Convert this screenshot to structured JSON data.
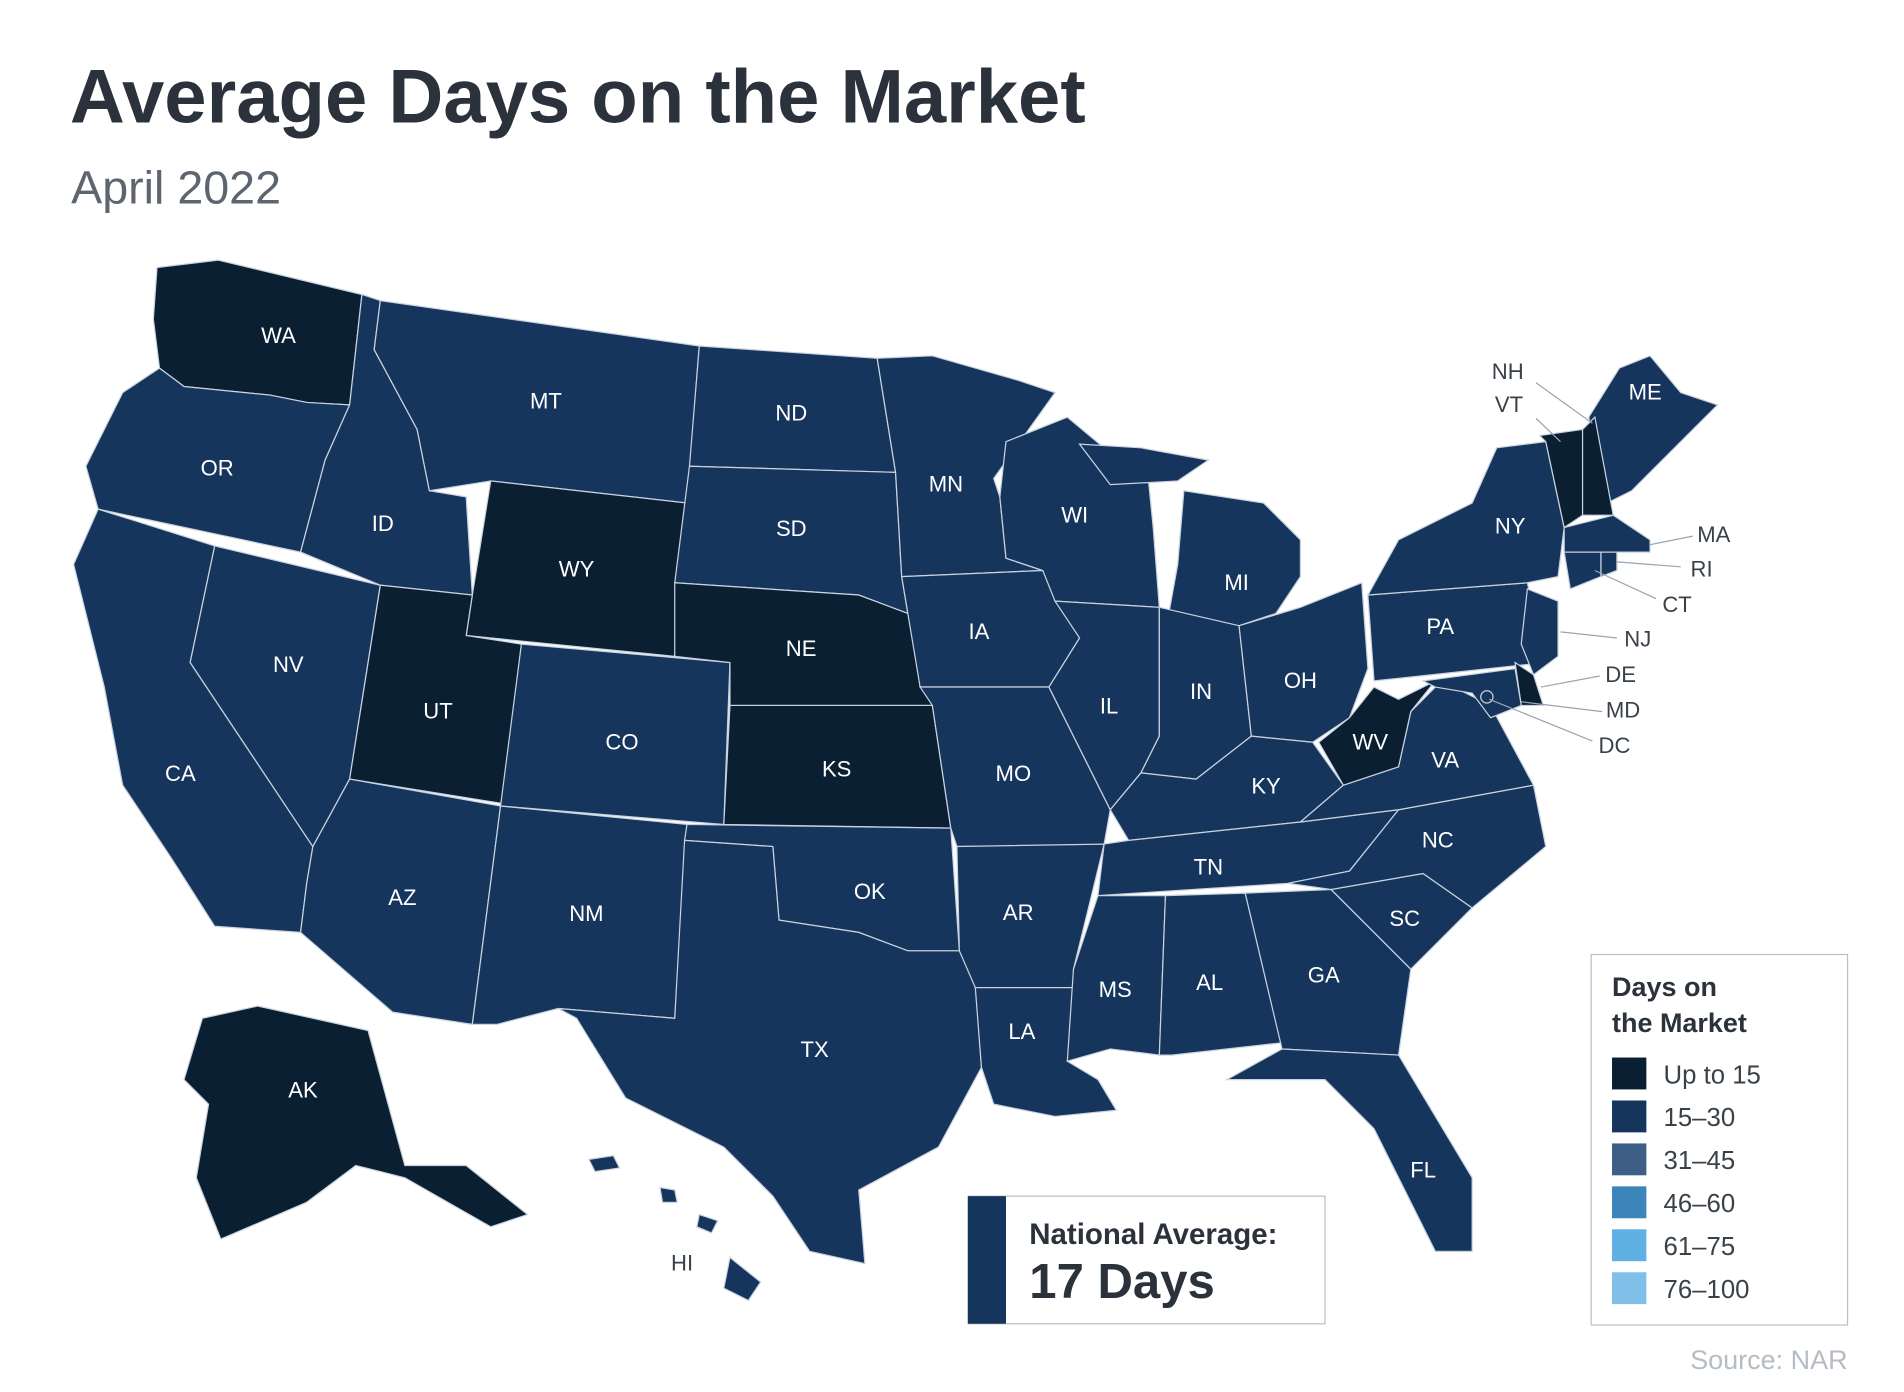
{
  "title": "Average Days on the Market",
  "subtitle": "April 2022",
  "legend": {
    "title": [
      "Days on",
      "the Market"
    ],
    "items": [
      {
        "label": "Up to 15",
        "color": "#0b1f33"
      },
      {
        "label": "15–30",
        "color": "#16355c"
      },
      {
        "label": "31–45",
        "color": "#3d5f86"
      },
      {
        "label": "46–60",
        "color": "#3b85b9"
      },
      {
        "label": "61–75",
        "color": "#5fb1e4"
      },
      {
        "label": "76–100",
        "color": "#80bfe8"
      }
    ]
  },
  "national_average": {
    "label": "National Average:",
    "value": "17 Days"
  },
  "source": "Source: NAR",
  "states": [
    {
      "label": "WA",
      "color": "#0b1f33"
    },
    {
      "label": "OR",
      "color": "#16355c"
    },
    {
      "label": "CA",
      "color": "#16355c"
    },
    {
      "label": "NV",
      "color": "#16355c"
    },
    {
      "label": "ID",
      "color": "#16355c"
    },
    {
      "label": "MT",
      "color": "#16355c"
    },
    {
      "label": "WY",
      "color": "#0b1f33"
    },
    {
      "label": "UT",
      "color": "#0b1f33"
    },
    {
      "label": "CO",
      "color": "#16355c"
    },
    {
      "label": "AZ",
      "color": "#16355c"
    },
    {
      "label": "NM",
      "color": "#16355c"
    },
    {
      "label": "ND",
      "color": "#16355c"
    },
    {
      "label": "SD",
      "color": "#16355c"
    },
    {
      "label": "NE",
      "color": "#0b1f33"
    },
    {
      "label": "KS",
      "color": "#0b1f33"
    },
    {
      "label": "OK",
      "color": "#16355c"
    },
    {
      "label": "TX",
      "color": "#16355c"
    },
    {
      "label": "MN",
      "color": "#16355c"
    },
    {
      "label": "IA",
      "color": "#16355c"
    },
    {
      "label": "MO",
      "color": "#16355c"
    },
    {
      "label": "AR",
      "color": "#16355c"
    },
    {
      "label": "LA",
      "color": "#16355c"
    },
    {
      "label": "WI",
      "color": "#16355c"
    },
    {
      "label": "IL",
      "color": "#16355c"
    },
    {
      "label": "MI",
      "color": "#16355c"
    },
    {
      "label": "IN",
      "color": "#16355c"
    },
    {
      "label": "OH",
      "color": "#16355c"
    },
    {
      "label": "KY",
      "color": "#16355c"
    },
    {
      "label": "TN",
      "color": "#16355c"
    },
    {
      "label": "MS",
      "color": "#16355c"
    },
    {
      "label": "AL",
      "color": "#16355c"
    },
    {
      "label": "GA",
      "color": "#16355c"
    },
    {
      "label": "SC",
      "color": "#16355c"
    },
    {
      "label": "NC",
      "color": "#16355c"
    },
    {
      "label": "VA",
      "color": "#16355c"
    },
    {
      "label": "WV",
      "color": "#0b1f33"
    },
    {
      "label": "PA",
      "color": "#16355c"
    },
    {
      "label": "NY",
      "color": "#16355c"
    },
    {
      "label": "FL",
      "color": "#16355c"
    },
    {
      "label": "ME",
      "color": "#16355c"
    },
    {
      "label": "VT",
      "color": "#0b1f33"
    },
    {
      "label": "NH",
      "color": "#0b1f33"
    },
    {
      "label": "MA",
      "color": "#16355c"
    },
    {
      "label": "CT",
      "color": "#16355c"
    },
    {
      "label": "RI",
      "color": "#16355c"
    },
    {
      "label": "NJ",
      "color": "#16355c"
    },
    {
      "label": "DE",
      "color": "#0b1f33"
    },
    {
      "label": "MD",
      "color": "#16355c"
    },
    {
      "label": "DC",
      "color": "#16355c"
    },
    {
      "label": "AK",
      "color": "#0b1f33"
    },
    {
      "label": "HI",
      "color": "#16355c"
    }
  ]
}
